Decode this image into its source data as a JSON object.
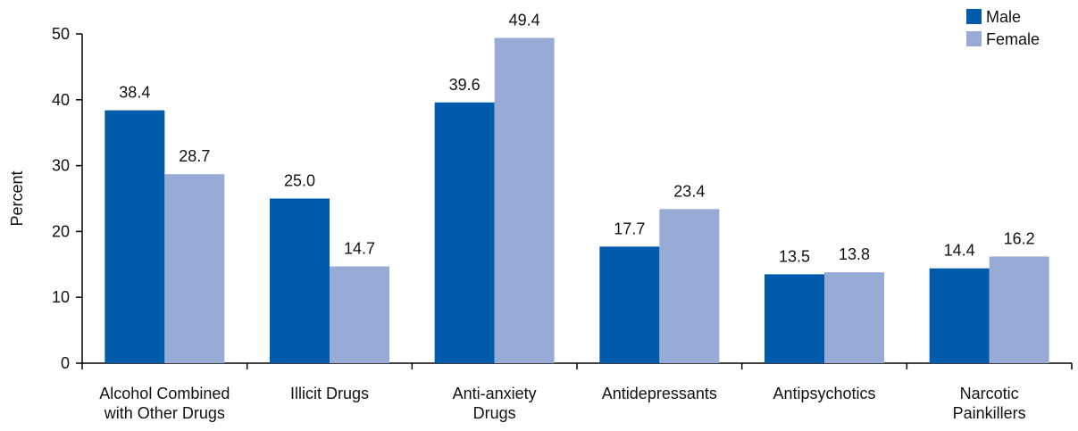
{
  "chart_data": {
    "type": "bar",
    "ylabel": "Percent",
    "xlabel": "",
    "ylim": [
      0,
      50
    ],
    "yticks": [
      0,
      10,
      20,
      30,
      40,
      50
    ],
    "grid": false,
    "legend_placement": "top-right",
    "categories": [
      [
        "Alcohol Combined",
        "with Other Drugs"
      ],
      [
        "Illicit Drugs"
      ],
      [
        "Anti-anxiety",
        "Drugs"
      ],
      [
        "Antidepressants"
      ],
      [
        "Antipsychotics"
      ],
      [
        "Narcotic",
        "Painkillers"
      ]
    ],
    "series": [
      {
        "name": "Male",
        "color": "#005BAA",
        "values": [
          38.4,
          25.0,
          39.6,
          17.7,
          13.5,
          14.4
        ],
        "labels": [
          "38.4",
          "25.0",
          "39.6",
          "17.7",
          "13.5",
          "14.4"
        ]
      },
      {
        "name": "Female",
        "color": "#97ABD6",
        "values": [
          28.7,
          14.7,
          49.4,
          23.4,
          13.8,
          16.2
        ],
        "labels": [
          "28.7",
          "14.7",
          "49.4",
          "23.4",
          "13.8",
          "16.2"
        ]
      }
    ]
  }
}
